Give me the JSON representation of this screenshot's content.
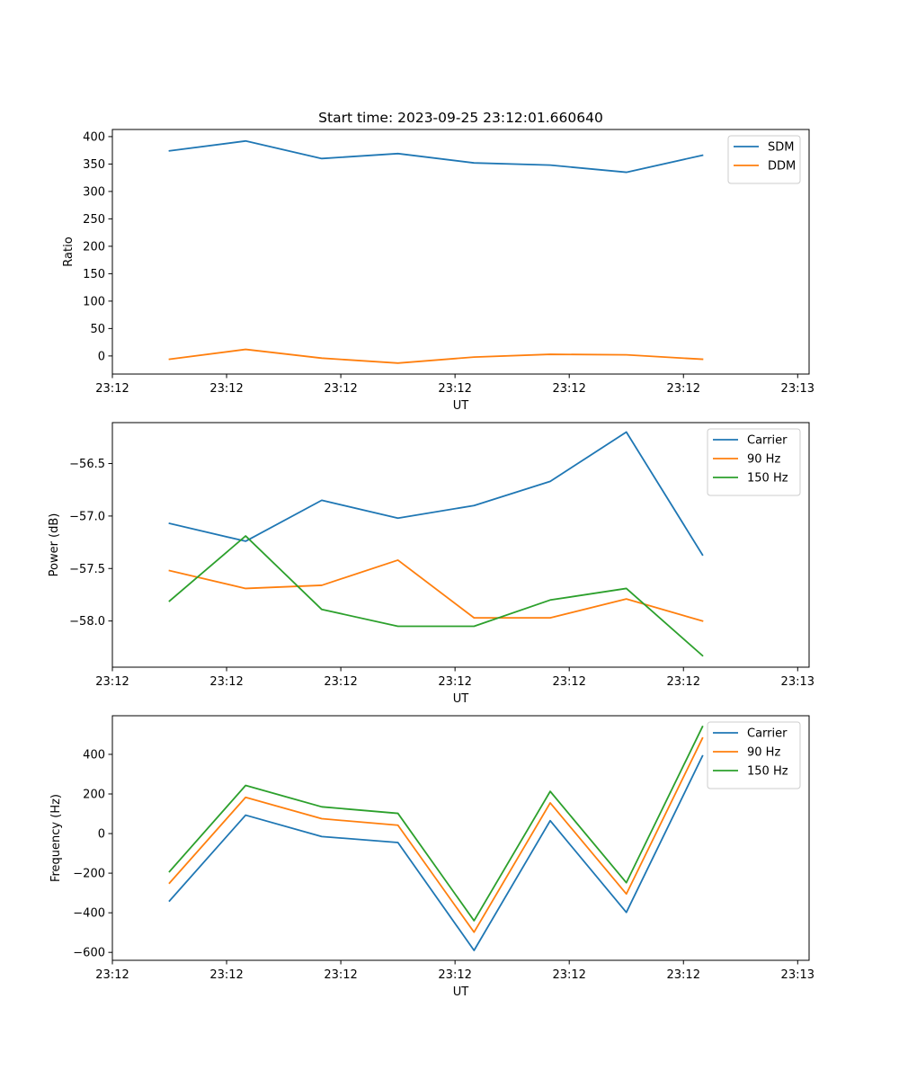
{
  "figure": {
    "title": "Start time: 2023-09-25 23:12:01.660640"
  },
  "chart_data": [
    {
      "type": "line",
      "title": "Start time: 2023-09-25 23:12:01.660640",
      "xlabel": "UT",
      "ylabel": "Ratio",
      "x": [
        1,
        2,
        3,
        4,
        5,
        6,
        7,
        8
      ],
      "xlim": [
        0.25,
        9.4
      ],
      "xticks": [
        0.25,
        1.75,
        3.25,
        4.75,
        6.25,
        7.75,
        9.25
      ],
      "xtick_labels": [
        "23:12",
        "23:12",
        "23:12",
        "23:12",
        "23:12",
        "23:12",
        "23:13"
      ],
      "ylim": [
        -33,
        413
      ],
      "yticks": [
        0,
        50,
        100,
        150,
        200,
        250,
        300,
        350,
        400
      ],
      "ytick_labels": [
        "0",
        "50",
        "100",
        "150",
        "200",
        "250",
        "300",
        "350",
        "400"
      ],
      "legend": "top-right",
      "series": [
        {
          "name": "SDM",
          "color": "#1f77b4",
          "values": [
            374,
            392,
            360,
            369,
            352,
            348,
            335,
            366
          ]
        },
        {
          "name": "DDM",
          "color": "#ff7f0e",
          "values": [
            -6,
            12,
            -4,
            -13,
            -2,
            3,
            2,
            -6
          ]
        }
      ]
    },
    {
      "type": "line",
      "title": "",
      "xlabel": "UT",
      "ylabel": "Power (dB)",
      "x": [
        1,
        2,
        3,
        4,
        5,
        6,
        7,
        8
      ],
      "xlim": [
        0.25,
        9.4
      ],
      "xticks": [
        0.25,
        1.75,
        3.25,
        4.75,
        6.25,
        7.75,
        9.25
      ],
      "xtick_labels": [
        "23:12",
        "23:12",
        "23:12",
        "23:12",
        "23:12",
        "23:12",
        "23:13"
      ],
      "ylim": [
        -58.44,
        -56.11
      ],
      "yticks": [
        -58.0,
        -57.5,
        -57.0,
        -56.5
      ],
      "ytick_labels": [
        "−58.0",
        "−57.5",
        "−57.0",
        "−56.5"
      ],
      "legend": "top-right",
      "series": [
        {
          "name": "Carrier",
          "color": "#1f77b4",
          "values": [
            -57.07,
            -57.24,
            -56.85,
            -57.02,
            -56.9,
            -56.67,
            -56.2,
            -57.37
          ]
        },
        {
          "name": "90 Hz",
          "color": "#ff7f0e",
          "values": [
            -57.52,
            -57.69,
            -57.66,
            -57.42,
            -57.97,
            -57.97,
            -57.79,
            -58.0
          ]
        },
        {
          "name": "150 Hz",
          "color": "#2ca02c",
          "values": [
            -57.81,
            -57.19,
            -57.89,
            -58.05,
            -58.05,
            -57.8,
            -57.69,
            -58.33
          ]
        }
      ]
    },
    {
      "type": "line",
      "title": "",
      "xlabel": "UT",
      "ylabel": "Frequency (Hz)",
      "x": [
        1,
        2,
        3,
        4,
        5,
        6,
        7,
        8
      ],
      "xlim": [
        0.25,
        9.4
      ],
      "xticks": [
        0.25,
        1.75,
        3.25,
        4.75,
        6.25,
        7.75,
        9.25
      ],
      "xtick_labels": [
        "23:12",
        "23:12",
        "23:12",
        "23:12",
        "23:12",
        "23:12",
        "23:13"
      ],
      "ylim": [
        -640,
        595
      ],
      "yticks": [
        -600,
        -400,
        -200,
        0,
        200,
        400
      ],
      "ytick_labels": [
        "−600",
        "−400",
        "−200",
        "0",
        "200",
        "400"
      ],
      "legend": "top-right",
      "series": [
        {
          "name": "Carrier",
          "color": "#1f77b4",
          "values": [
            -340,
            93,
            -15,
            -45,
            -590,
            65,
            -398,
            392
          ]
        },
        {
          "name": "90 Hz",
          "color": "#ff7f0e",
          "values": [
            -250,
            183,
            75,
            42,
            -498,
            155,
            -305,
            482
          ]
        },
        {
          "name": "150 Hz",
          "color": "#2ca02c",
          "values": [
            -192,
            243,
            135,
            102,
            -440,
            213,
            -248,
            540
          ]
        }
      ]
    }
  ]
}
